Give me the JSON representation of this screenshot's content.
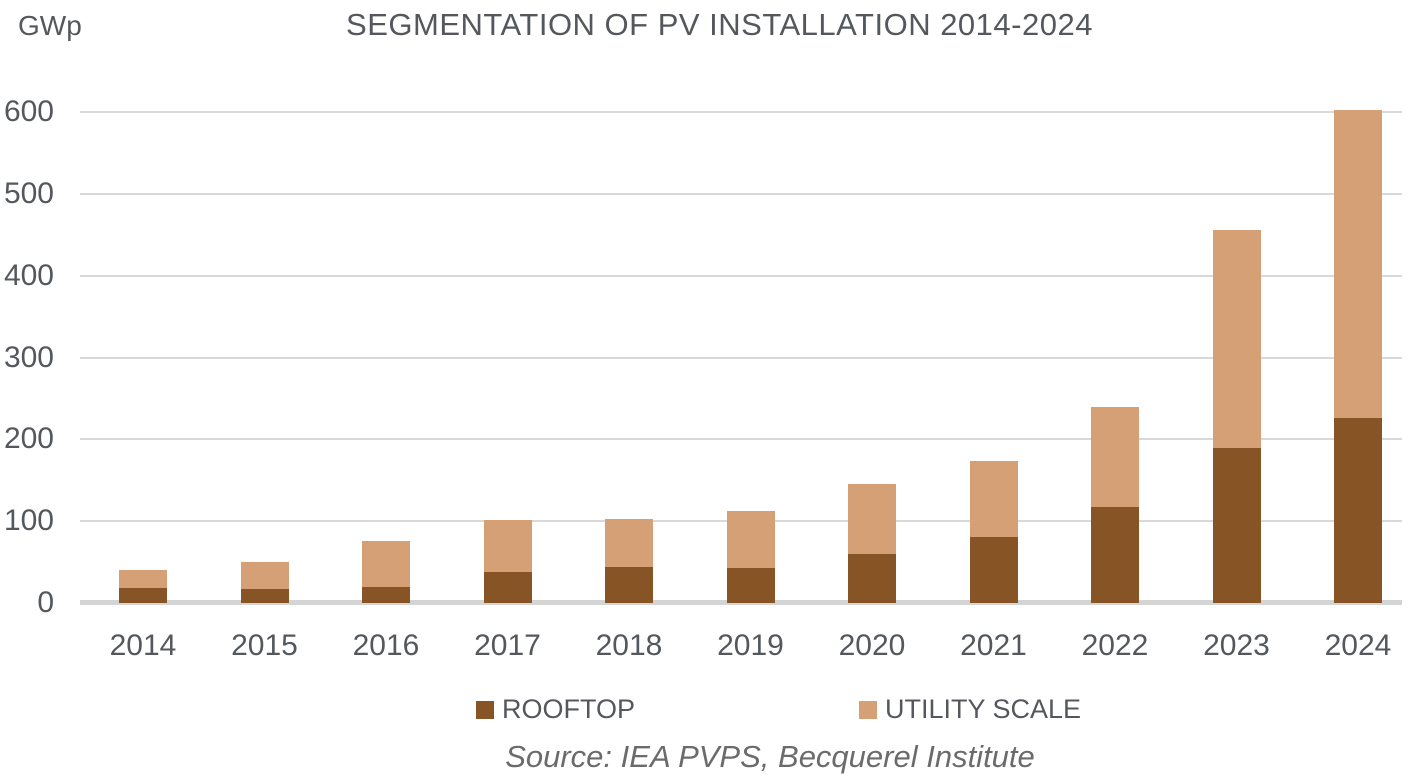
{
  "header": {
    "unit_label": "GWp"
  },
  "chart_data": {
    "type": "bar",
    "stacked": true,
    "title": "SEGMENTATION OF PV INSTALLATION 2014-2024",
    "ylabel": "GWp",
    "xlabel": "",
    "categories": [
      "2014",
      "2015",
      "2016",
      "2017",
      "2018",
      "2019",
      "2020",
      "2021",
      "2022",
      "2023",
      "2024"
    ],
    "series": [
      {
        "name": "ROOFTOP",
        "color": "#875426",
        "values": [
          18,
          17,
          20,
          38,
          44,
          43,
          60,
          81,
          117,
          189,
          226
        ]
      },
      {
        "name": "UTILITY SCALE",
        "color": "#D6A077",
        "values": [
          22,
          33,
          56,
          63,
          59,
          70,
          85,
          93,
          123,
          267,
          376
        ]
      }
    ],
    "totals": [
      40,
      50,
      76,
      101,
      103,
      113,
      145,
      174,
      240,
      456,
      602
    ],
    "ylim": [
      0,
      600
    ],
    "yticks": [
      0,
      100,
      200,
      300,
      400,
      500,
      600
    ],
    "grid": true,
    "legend_position": "bottom"
  },
  "footer": {
    "source": "Source: IEA PVPS, Becquerel Institute"
  },
  "colors": {
    "text": "#54585D",
    "source": "#6B6B6B",
    "grid": "#D9D9D9",
    "axis": "#D4D4D4"
  }
}
